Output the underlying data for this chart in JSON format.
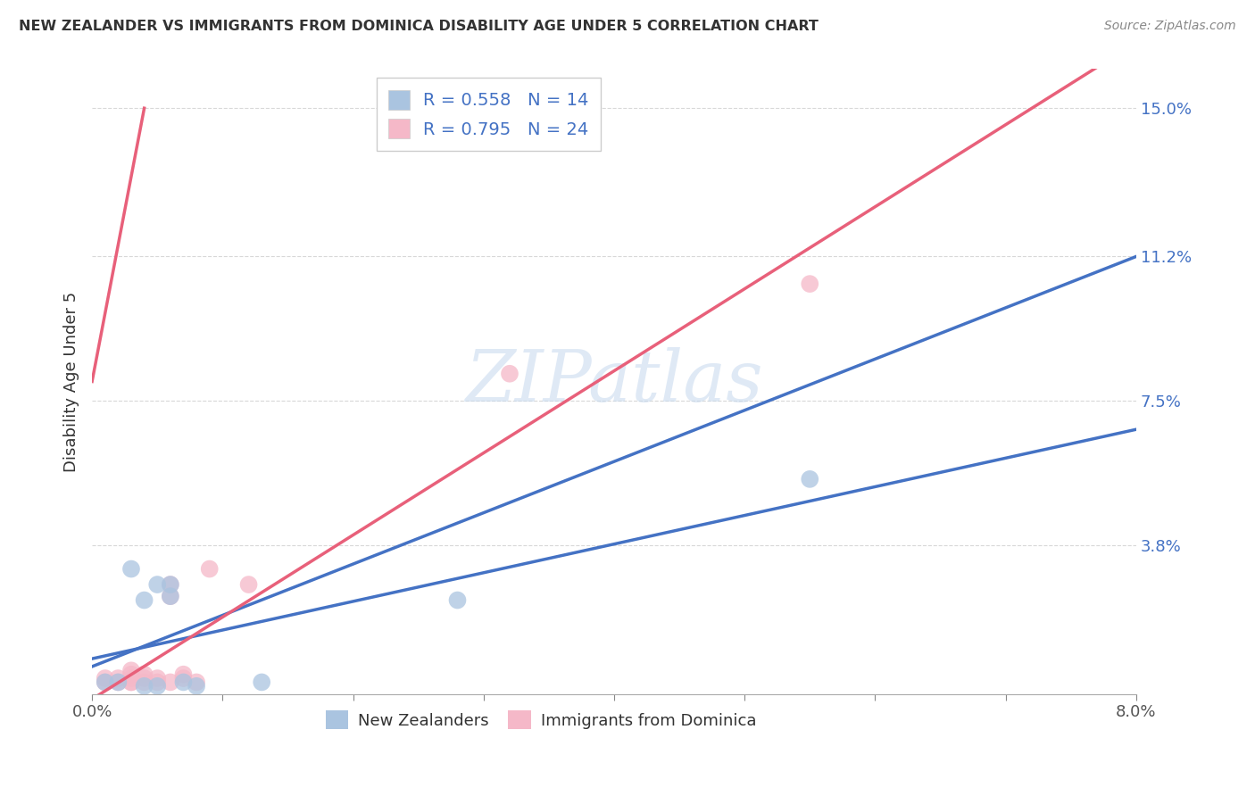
{
  "title": "NEW ZEALANDER VS IMMIGRANTS FROM DOMINICA DISABILITY AGE UNDER 5 CORRELATION CHART",
  "source": "Source: ZipAtlas.com",
  "ylabel": "Disability Age Under 5",
  "xlim": [
    0.0,
    0.08
  ],
  "ylim": [
    0.0,
    0.16
  ],
  "xticks": [
    0.0,
    0.01,
    0.02,
    0.03,
    0.04,
    0.05,
    0.06,
    0.07,
    0.08
  ],
  "xticklabels": [
    "0.0%",
    "",
    "",
    "",
    "",
    "",
    "",
    "",
    "8.0%"
  ],
  "ytick_positions": [
    0.038,
    0.075,
    0.112,
    0.15
  ],
  "yticklabels": [
    "3.8%",
    "7.5%",
    "11.2%",
    "15.0%"
  ],
  "nz_color": "#aac4e0",
  "dom_color": "#f5b8c8",
  "nz_line_color": "#4472c4",
  "dom_line_color": "#e8607a",
  "nz_R": 0.558,
  "nz_N": 14,
  "dom_R": 0.795,
  "dom_N": 24,
  "nz_points_x": [
    0.001,
    0.002,
    0.003,
    0.004,
    0.004,
    0.005,
    0.005,
    0.006,
    0.006,
    0.007,
    0.008,
    0.013,
    0.028,
    0.055
  ],
  "nz_points_y": [
    0.003,
    0.003,
    0.032,
    0.002,
    0.024,
    0.028,
    0.002,
    0.025,
    0.028,
    0.003,
    0.002,
    0.003,
    0.024,
    0.055
  ],
  "dom_points_x": [
    0.001,
    0.001,
    0.002,
    0.002,
    0.003,
    0.003,
    0.003,
    0.003,
    0.003,
    0.004,
    0.004,
    0.004,
    0.005,
    0.005,
    0.006,
    0.006,
    0.006,
    0.007,
    0.007,
    0.008,
    0.009,
    0.012,
    0.032,
    0.055
  ],
  "dom_points_y": [
    0.003,
    0.004,
    0.003,
    0.004,
    0.003,
    0.003,
    0.004,
    0.005,
    0.006,
    0.003,
    0.004,
    0.005,
    0.003,
    0.004,
    0.003,
    0.025,
    0.028,
    0.004,
    0.005,
    0.003,
    0.032,
    0.028,
    0.082,
    0.105
  ],
  "watermark_text": "ZIPatlas",
  "background_color": "#ffffff",
  "grid_color": "#d8d8d8",
  "legend_text_color": "#4472c4",
  "legend_label_color": "#222222"
}
